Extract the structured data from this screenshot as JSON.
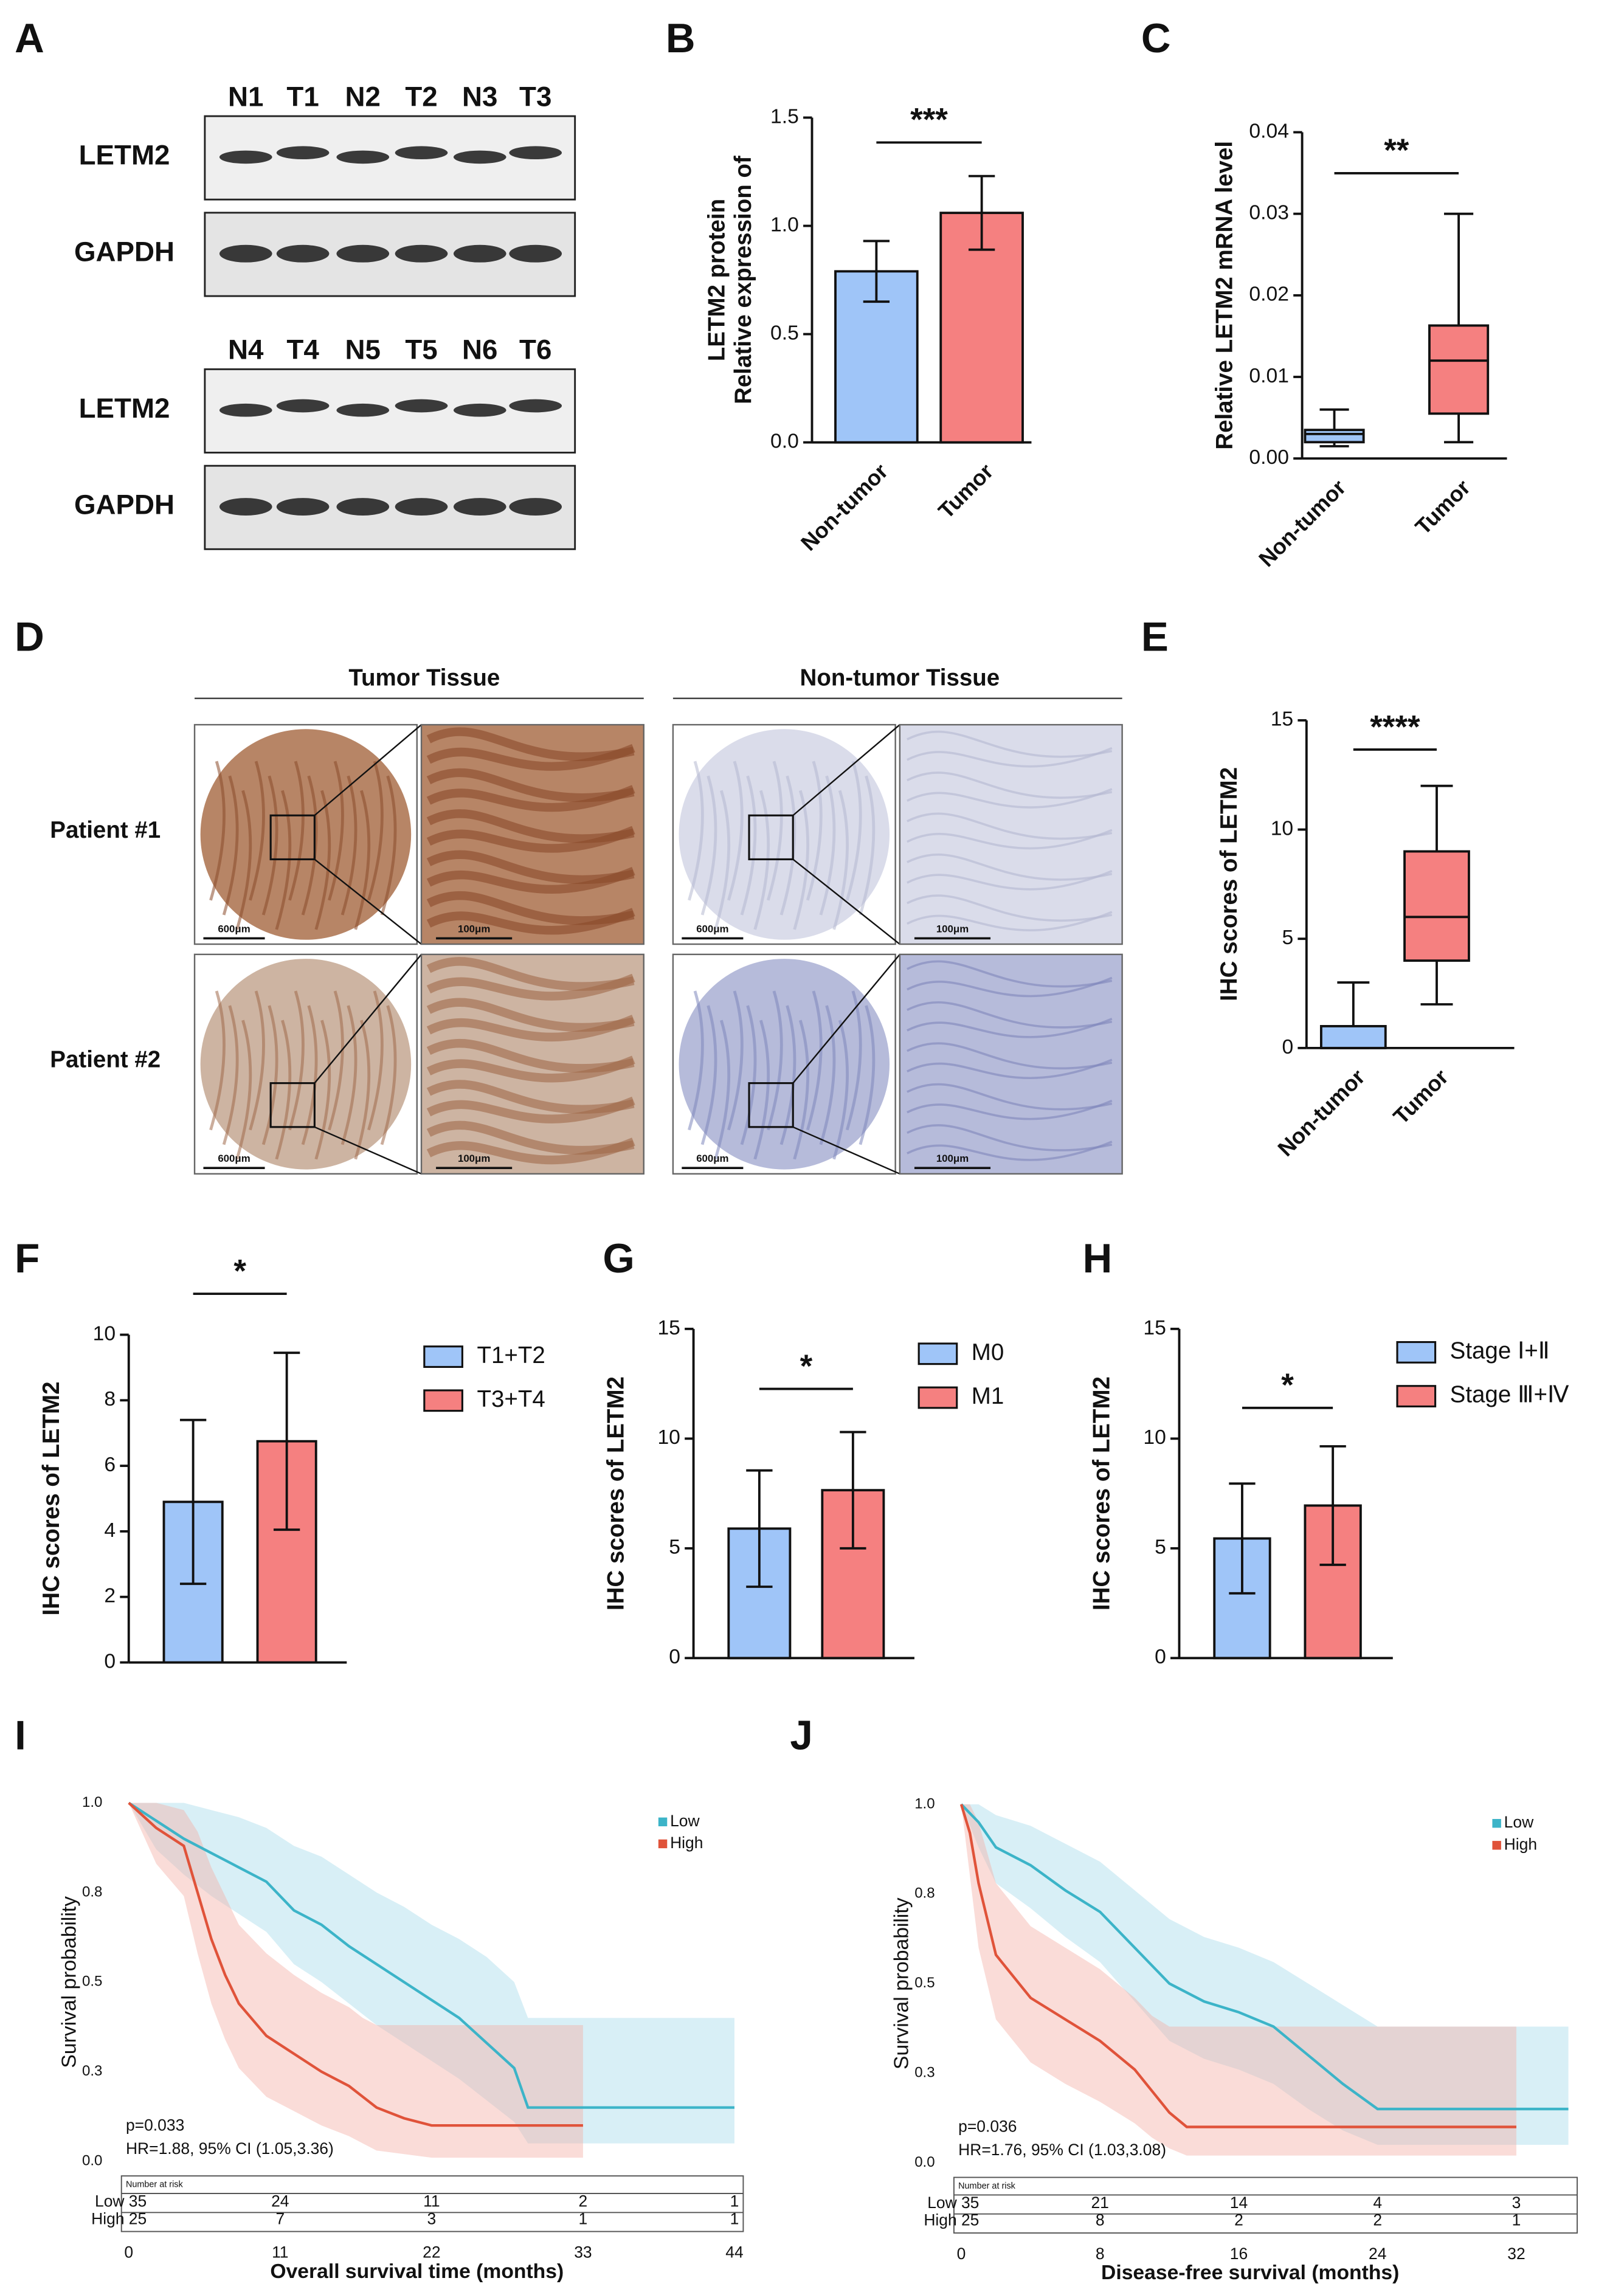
{
  "blot": {
    "panel": "A",
    "groups": [
      {
        "lanes": [
          "N1",
          "T1",
          "N2",
          "T2",
          "N3",
          "T3"
        ],
        "rows": [
          "LETM2",
          "GAPDH"
        ]
      },
      {
        "lanes": [
          "N4",
          "T4",
          "N5",
          "T5",
          "N6",
          "T6"
        ],
        "rows": [
          "LETM2",
          "GAPDH"
        ]
      }
    ]
  },
  "ihc": {
    "panel": "D",
    "columns": [
      "Tumor Tissue",
      "Non-tumor Tissue"
    ],
    "rows": [
      "Patient #1",
      "Patient #2"
    ],
    "scale_bars": [
      "600μm",
      "100μm"
    ]
  },
  "chart_data": [
    {
      "panel": "B",
      "type": "bar",
      "ylabel": [
        "Relative expression of",
        "LETM2 protein"
      ],
      "categories": [
        "Non-tumor",
        "Tumor"
      ],
      "values": [
        0.79,
        1.06
      ],
      "errors": [
        0.14,
        0.17
      ],
      "colors": [
        "#9fc5f8",
        "#f58080"
      ],
      "ylim": [
        0,
        1.5
      ],
      "yticks": [
        {
          "value": 0,
          "label": "0.0"
        },
        0.5,
        {
          "value": 1,
          "label": "1.0"
        },
        1.5
      ],
      "annotation": "***"
    },
    {
      "panel": "C",
      "type": "box",
      "ylabel": "Relative LETM2 mRNA level",
      "categories": [
        "Non-tumor",
        "Tumor"
      ],
      "colors": [
        "#9fc5f8",
        "#f58080"
      ],
      "boxes": [
        {
          "min": 0.0015,
          "q1": 0.002,
          "median": 0.003,
          "q3": 0.0035,
          "max": 0.006
        },
        {
          "min": 0.002,
          "q1": 0.0055,
          "median": 0.012,
          "q3": 0.0163,
          "max": 0.03
        }
      ],
      "ylim": [
        0,
        0.04
      ],
      "yticks": [
        {
          "value": 0,
          "label": "0.00"
        },
        0.01,
        0.02,
        0.03,
        0.04
      ],
      "annotation": "**"
    },
    {
      "panel": "E",
      "type": "box",
      "ylabel": "IHC scores of LETM2",
      "categories": [
        "Non-tumor",
        "Tumor"
      ],
      "colors": [
        "#9fc5f8",
        "#f58080"
      ],
      "boxes": [
        {
          "min": 0,
          "q1": 0,
          "median": 0,
          "q3": 1,
          "max": 3
        },
        {
          "min": 2,
          "q1": 4,
          "median": 6,
          "q3": 9,
          "max": 12
        }
      ],
      "ylim": [
        0,
        15
      ],
      "yticks": [
        0,
        5,
        10,
        15
      ],
      "annotation": "****"
    },
    {
      "panel": "F",
      "type": "bar",
      "ylabel": "IHC scores of LETM2",
      "series": [
        {
          "name": "T1+T2",
          "color": "#9fc5f8",
          "values": [
            4.9
          ],
          "errors": [
            2.5
          ]
        },
        {
          "name": "T3+T4",
          "color": "#f58080",
          "values": [
            6.75
          ],
          "errors": [
            2.7
          ]
        }
      ],
      "ylim": [
        0,
        10
      ],
      "yticks": [
        0,
        2,
        4,
        6,
        8,
        10
      ],
      "annotation": "*"
    },
    {
      "panel": "G",
      "type": "bar",
      "ylabel": "IHC scores of LETM2",
      "series": [
        {
          "name": "M0",
          "color": "#9fc5f8",
          "values": [
            5.9
          ],
          "errors": [
            2.65
          ]
        },
        {
          "name": "M1",
          "color": "#f58080",
          "values": [
            7.65
          ],
          "errors": [
            2.65
          ]
        }
      ],
      "ylim": [
        0,
        15
      ],
      "yticks": [
        0,
        5,
        10,
        15
      ],
      "annotation": "*"
    },
    {
      "panel": "H",
      "type": "bar",
      "ylabel": "IHC scores of LETM2",
      "series": [
        {
          "name": "Stage Ⅰ+Ⅱ",
          "color": "#9fc5f8",
          "values": [
            5.45
          ],
          "errors": [
            2.5
          ]
        },
        {
          "name": "Stage Ⅲ+Ⅳ",
          "color": "#f58080",
          "values": [
            6.95
          ],
          "errors": [
            2.7
          ]
        }
      ],
      "ylim": [
        0,
        15
      ],
      "yticks": [
        0,
        5,
        10,
        15
      ],
      "annotation": "*"
    },
    {
      "panel": "I",
      "type": "line",
      "xlabel": "Overall survival time (months)",
      "ylabel": "Survival probability",
      "xlim": [
        0,
        44
      ],
      "xticks": [
        0,
        11,
        22,
        33,
        44
      ],
      "ylim": [
        0,
        1
      ],
      "yticks": [
        {
          "value": 0,
          "label": "0.0"
        },
        {
          "value": 0.25,
          "label": "0.3"
        },
        0.5,
        {
          "value": 0.75,
          "label": "0.8"
        },
        {
          "value": 1,
          "label": "1.0"
        }
      ],
      "series": [
        {
          "name": "Low",
          "color": "#3cb4c8",
          "band_color": "#a9dcec",
          "x": [
            0,
            2,
            4,
            6,
            8,
            10,
            12,
            14,
            16,
            18,
            20,
            22,
            24,
            26,
            28,
            29,
            33,
            44
          ],
          "values": [
            1.0,
            0.95,
            0.9,
            0.86,
            0.82,
            0.78,
            0.7,
            0.66,
            0.6,
            0.55,
            0.5,
            0.45,
            0.4,
            0.33,
            0.26,
            0.15,
            0.15,
            0.15
          ],
          "upper": [
            1.0,
            1.0,
            1.0,
            0.98,
            0.96,
            0.93,
            0.88,
            0.85,
            0.8,
            0.75,
            0.71,
            0.66,
            0.62,
            0.57,
            0.5,
            0.4,
            0.4,
            0.4
          ],
          "lower": [
            1.0,
            0.87,
            0.8,
            0.74,
            0.69,
            0.64,
            0.55,
            0.5,
            0.44,
            0.38,
            0.33,
            0.28,
            0.23,
            0.17,
            0.11,
            0.05,
            0.05,
            0.05
          ]
        },
        {
          "name": "High",
          "color": "#e0533a",
          "band_color": "#f3b1a8",
          "x": [
            0,
            2,
            4,
            5,
            6,
            7,
            8,
            10,
            12,
            14,
            16,
            17,
            18,
            20,
            22,
            33
          ],
          "values": [
            1.0,
            0.93,
            0.88,
            0.75,
            0.62,
            0.52,
            0.44,
            0.35,
            0.3,
            0.25,
            0.21,
            0.18,
            0.15,
            0.12,
            0.1,
            0.1
          ],
          "upper": [
            1.0,
            1.0,
            0.98,
            0.92,
            0.82,
            0.74,
            0.66,
            0.58,
            0.52,
            0.47,
            0.43,
            0.4,
            0.38,
            0.38,
            0.38,
            0.38
          ],
          "lower": [
            1.0,
            0.83,
            0.74,
            0.58,
            0.44,
            0.34,
            0.26,
            0.18,
            0.14,
            0.1,
            0.07,
            0.05,
            0.03,
            0.02,
            0.01,
            0.01
          ]
        }
      ],
      "annotations": [
        "p=0.033",
        "HR=1.88, 95% CI (1.05,3.36)"
      ],
      "risk_table": {
        "title": "Number at risk",
        "rows": [
          [
            35,
            24,
            11,
            2,
            1
          ],
          [
            25,
            7,
            3,
            1,
            1
          ]
        ]
      }
    },
    {
      "panel": "J",
      "type": "line",
      "xlabel": "Disease-free survival (months)",
      "ylabel": "Survival probability",
      "xlim": [
        0,
        35
      ],
      "xticks": [
        0,
        8,
        16,
        24,
        32
      ],
      "ylim": [
        0,
        1
      ],
      "yticks": [
        {
          "value": 0,
          "label": "0.0"
        },
        {
          "value": 0.25,
          "label": "0.3"
        },
        0.5,
        {
          "value": 0.75,
          "label": "0.8"
        },
        {
          "value": 1,
          "label": "1.0"
        }
      ],
      "series": [
        {
          "name": "Low",
          "color": "#3cb4c8",
          "band_color": "#a9dcec",
          "x": [
            0,
            1,
            2,
            4,
            6,
            8,
            10,
            12,
            14,
            16,
            18,
            20,
            22,
            24,
            35
          ],
          "values": [
            1.0,
            0.95,
            0.88,
            0.83,
            0.76,
            0.7,
            0.6,
            0.5,
            0.45,
            0.42,
            0.38,
            0.3,
            0.22,
            0.15,
            0.15
          ],
          "upper": [
            1.0,
            1.0,
            0.97,
            0.94,
            0.89,
            0.84,
            0.76,
            0.68,
            0.63,
            0.6,
            0.56,
            0.5,
            0.44,
            0.38,
            0.38
          ],
          "lower": [
            1.0,
            0.88,
            0.78,
            0.71,
            0.63,
            0.56,
            0.45,
            0.34,
            0.29,
            0.26,
            0.22,
            0.15,
            0.09,
            0.05,
            0.05
          ]
        },
        {
          "name": "High",
          "color": "#e0533a",
          "band_color": "#f3b1a8",
          "x": [
            0,
            0.5,
            1,
            2,
            4,
            6,
            8,
            10,
            11,
            12,
            13,
            32
          ],
          "values": [
            1.0,
            0.92,
            0.78,
            0.58,
            0.46,
            0.4,
            0.34,
            0.26,
            0.2,
            0.14,
            0.1,
            0.1
          ],
          "upper": [
            1.0,
            1.0,
            0.95,
            0.78,
            0.66,
            0.6,
            0.54,
            0.46,
            0.41,
            0.38,
            0.38,
            0.38
          ],
          "lower": [
            1.0,
            0.8,
            0.6,
            0.4,
            0.28,
            0.22,
            0.17,
            0.11,
            0.07,
            0.04,
            0.02,
            0.02
          ]
        }
      ],
      "annotations": [
        "p=0.036",
        "HR=1.76, 95% CI (1.03,3.08)"
      ],
      "risk_table": {
        "title": "Number at risk",
        "rows": [
          [
            35,
            21,
            14,
            4,
            3
          ],
          [
            25,
            8,
            2,
            2,
            1
          ]
        ]
      }
    }
  ]
}
